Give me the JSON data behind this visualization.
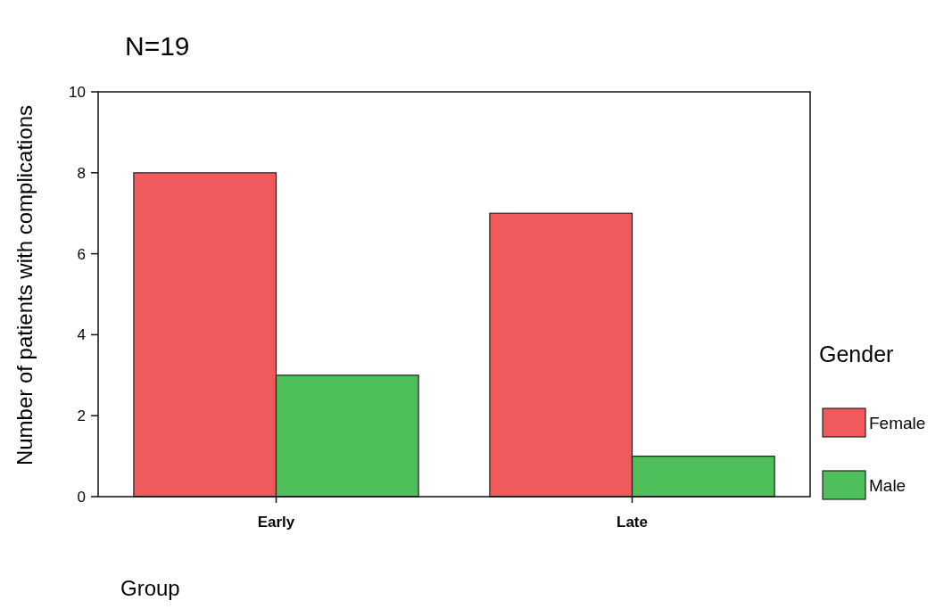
{
  "chart_data": {
    "type": "bar",
    "title": "N=19",
    "xlabel": "Group",
    "ylabel": "Number of patients with complications",
    "legend_title": "Gender",
    "categories": [
      "Early",
      "Late"
    ],
    "series": [
      {
        "name": "Female",
        "color": "#f05a5c",
        "values": [
          8,
          7
        ]
      },
      {
        "name": "Male",
        "color": "#4fbf5c",
        "values": [
          3,
          1
        ]
      }
    ],
    "ylim": [
      0,
      10
    ],
    "yticks": [
      0,
      2,
      4,
      6,
      8,
      10
    ],
    "grid": false,
    "legend": "right"
  }
}
